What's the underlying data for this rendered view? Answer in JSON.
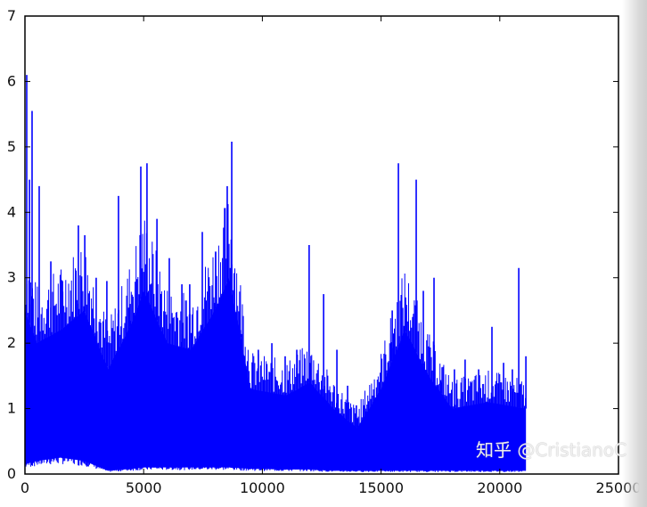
{
  "chart_data": {
    "type": "line",
    "title": "",
    "xlabel": "",
    "ylabel": "",
    "xlim": [
      0,
      25000
    ],
    "ylim": [
      0,
      7
    ],
    "xticks": [
      "0",
      "5000",
      "10000",
      "15000",
      "20000",
      "25000"
    ],
    "yticks": [
      "0",
      "1",
      "2",
      "3",
      "4",
      "5",
      "6",
      "7"
    ],
    "grid": false,
    "color": "#0000ff",
    "peaks": [
      {
        "x": 75,
        "y": 6.1
      },
      {
        "x": 190,
        "y": 4.5
      },
      {
        "x": 300,
        "y": 5.55
      },
      {
        "x": 600,
        "y": 4.4
      },
      {
        "x": 1090,
        "y": 3.25
      },
      {
        "x": 1580,
        "y": 2.95
      },
      {
        "x": 2250,
        "y": 3.8
      },
      {
        "x": 2520,
        "y": 3.65
      },
      {
        "x": 3000,
        "y": 3.0
      },
      {
        "x": 3450,
        "y": 2.95
      },
      {
        "x": 3940,
        "y": 4.25
      },
      {
        "x": 4430,
        "y": 2.6
      },
      {
        "x": 4880,
        "y": 4.7
      },
      {
        "x": 5140,
        "y": 4.75
      },
      {
        "x": 5560,
        "y": 3.9
      },
      {
        "x": 6080,
        "y": 3.3
      },
      {
        "x": 6610,
        "y": 2.9
      },
      {
        "x": 6940,
        "y": 2.9
      },
      {
        "x": 7470,
        "y": 3.7
      },
      {
        "x": 8030,
        "y": 3.4
      },
      {
        "x": 8520,
        "y": 4.4
      },
      {
        "x": 8710,
        "y": 5.08
      },
      {
        "x": 9080,
        "y": 2.2
      },
      {
        "x": 9830,
        "y": 1.9
      },
      {
        "x": 10400,
        "y": 2.0
      },
      {
        "x": 10960,
        "y": 1.8
      },
      {
        "x": 11450,
        "y": 1.9
      },
      {
        "x": 11970,
        "y": 3.5
      },
      {
        "x": 12580,
        "y": 2.75
      },
      {
        "x": 13140,
        "y": 1.9
      },
      {
        "x": 13590,
        "y": 1.35
      },
      {
        "x": 13960,
        "y": 1.05
      },
      {
        "x": 14340,
        "y": 1.0
      },
      {
        "x": 14710,
        "y": 1.2
      },
      {
        "x": 15090,
        "y": 1.4
      },
      {
        "x": 15470,
        "y": 2.5
      },
      {
        "x": 15730,
        "y": 4.75
      },
      {
        "x": 16030,
        "y": 2.7
      },
      {
        "x": 16480,
        "y": 4.5
      },
      {
        "x": 16780,
        "y": 2.8
      },
      {
        "x": 17230,
        "y": 3.0
      },
      {
        "x": 17530,
        "y": 1.4
      },
      {
        "x": 18090,
        "y": 1.6
      },
      {
        "x": 18540,
        "y": 1.75
      },
      {
        "x": 19110,
        "y": 1.6
      },
      {
        "x": 19670,
        "y": 2.25
      },
      {
        "x": 20160,
        "y": 1.7
      },
      {
        "x": 20530,
        "y": 1.6
      },
      {
        "x": 20800,
        "y": 3.15
      },
      {
        "x": 21100,
        "y": 1.8
      }
    ],
    "band": [
      {
        "x": 0,
        "upper": 2.5,
        "lower": 0.15
      },
      {
        "x": 500,
        "upper": 2.0,
        "lower": 0.2
      },
      {
        "x": 1500,
        "upper": 2.2,
        "lower": 0.25
      },
      {
        "x": 2500,
        "upper": 2.5,
        "lower": 0.2
      },
      {
        "x": 3500,
        "upper": 1.6,
        "lower": 0.05
      },
      {
        "x": 4500,
        "upper": 2.3,
        "lower": 0.08
      },
      {
        "x": 5000,
        "upper": 2.8,
        "lower": 0.1
      },
      {
        "x": 6000,
        "upper": 2.0,
        "lower": 0.1
      },
      {
        "x": 7000,
        "upper": 1.9,
        "lower": 0.1
      },
      {
        "x": 8000,
        "upper": 2.5,
        "lower": 0.1
      },
      {
        "x": 8600,
        "upper": 3.0,
        "lower": 0.1
      },
      {
        "x": 9500,
        "upper": 1.3,
        "lower": 0.08
      },
      {
        "x": 11000,
        "upper": 1.2,
        "lower": 0.07
      },
      {
        "x": 12000,
        "upper": 1.4,
        "lower": 0.07
      },
      {
        "x": 13000,
        "upper": 1.0,
        "lower": 0.05
      },
      {
        "x": 14000,
        "upper": 0.7,
        "lower": 0.05
      },
      {
        "x": 15000,
        "upper": 1.3,
        "lower": 0.05
      },
      {
        "x": 16000,
        "upper": 2.2,
        "lower": 0.05
      },
      {
        "x": 17000,
        "upper": 1.5,
        "lower": 0.05
      },
      {
        "x": 18000,
        "upper": 1.0,
        "lower": 0.05
      },
      {
        "x": 19500,
        "upper": 1.1,
        "lower": 0.05
      },
      {
        "x": 21100,
        "upper": 1.0,
        "lower": 0.05
      }
    ]
  },
  "watermark": "知乎 @CristianoC"
}
